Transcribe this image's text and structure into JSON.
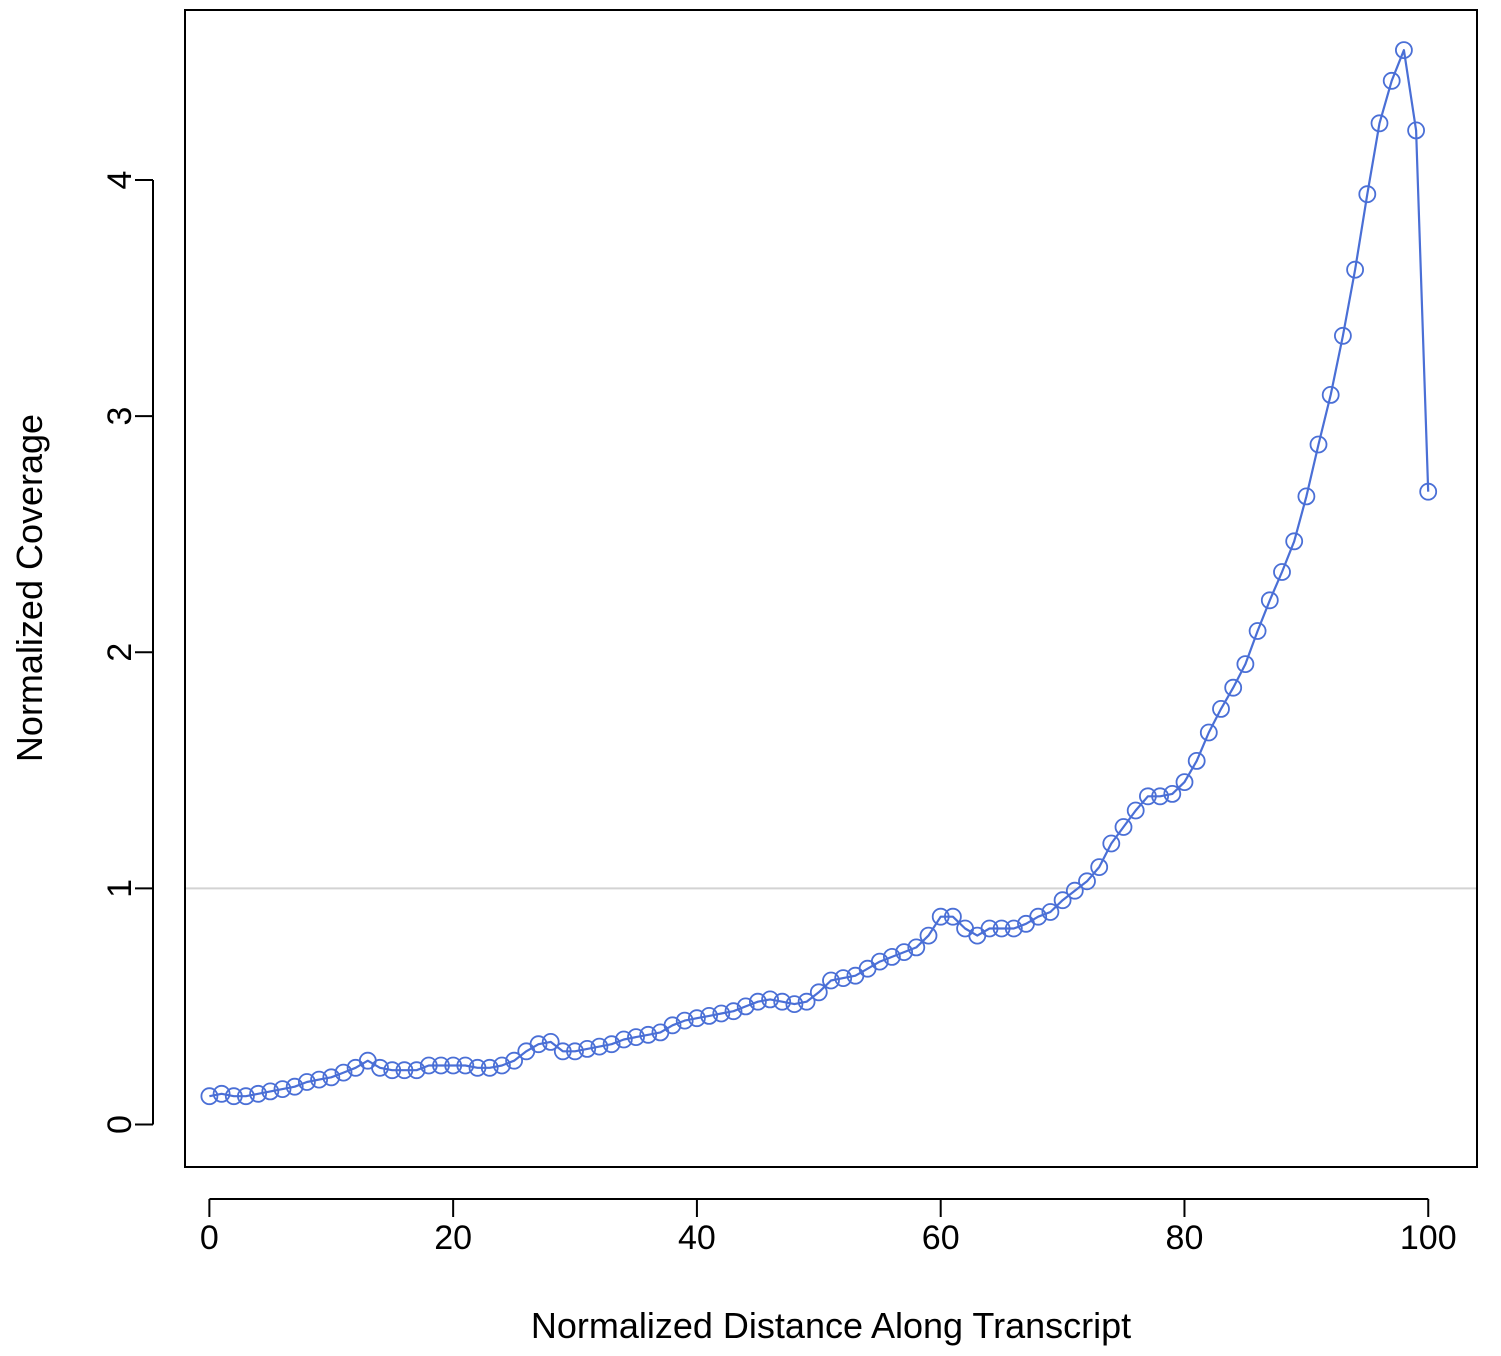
{
  "chart_data": {
    "type": "line",
    "title": "",
    "xlabel": "Normalized Distance Along Transcript",
    "ylabel": "Normalized Coverage",
    "xlim": [
      -2,
      104
    ],
    "ylim": [
      -0.18,
      4.72
    ],
    "xticks": [
      0,
      20,
      40,
      60,
      80,
      100
    ],
    "yticks": [
      0,
      1,
      2,
      3,
      4
    ],
    "xtick_labels": [
      "0",
      "20",
      "40",
      "60",
      "80",
      "100"
    ],
    "ytick_labels": [
      "0",
      "1",
      "2",
      "3",
      "4"
    ],
    "grid": false,
    "legend": "none",
    "reference_line": {
      "y": 1,
      "color": "#d3d3d3"
    },
    "series": [
      {
        "color": "#4a6fd6",
        "marker": "open-circle",
        "x": [
          0,
          1,
          2,
          3,
          4,
          5,
          6,
          7,
          8,
          9,
          10,
          11,
          12,
          13,
          14,
          15,
          16,
          17,
          18,
          19,
          20,
          21,
          22,
          23,
          24,
          25,
          26,
          27,
          28,
          29,
          30,
          31,
          32,
          33,
          34,
          35,
          36,
          37,
          38,
          39,
          40,
          41,
          42,
          43,
          44,
          45,
          46,
          47,
          48,
          49,
          50,
          51,
          52,
          53,
          54,
          55,
          56,
          57,
          58,
          59,
          60,
          61,
          62,
          63,
          64,
          65,
          66,
          67,
          68,
          69,
          70,
          71,
          72,
          73,
          74,
          75,
          76,
          77,
          78,
          79,
          80,
          81,
          82,
          83,
          84,
          85,
          86,
          87,
          88,
          89,
          90,
          91,
          92,
          93,
          94,
          95,
          96,
          97,
          98,
          99,
          100
        ],
        "values": [
          0.12,
          0.13,
          0.12,
          0.12,
          0.13,
          0.14,
          0.15,
          0.16,
          0.18,
          0.19,
          0.2,
          0.22,
          0.24,
          0.27,
          0.24,
          0.23,
          0.23,
          0.23,
          0.25,
          0.25,
          0.25,
          0.25,
          0.24,
          0.24,
          0.25,
          0.27,
          0.31,
          0.34,
          0.35,
          0.31,
          0.31,
          0.32,
          0.33,
          0.34,
          0.36,
          0.37,
          0.38,
          0.39,
          0.42,
          0.44,
          0.45,
          0.46,
          0.47,
          0.48,
          0.5,
          0.52,
          0.53,
          0.52,
          0.51,
          0.52,
          0.56,
          0.61,
          0.62,
          0.63,
          0.66,
          0.69,
          0.71,
          0.73,
          0.75,
          0.8,
          0.88,
          0.88,
          0.83,
          0.8,
          0.83,
          0.83,
          0.83,
          0.85,
          0.88,
          0.9,
          0.95,
          0.99,
          1.03,
          1.09,
          1.19,
          1.26,
          1.33,
          1.39,
          1.39,
          1.4,
          1.45,
          1.54,
          1.66,
          1.76,
          1.85,
          1.95,
          2.09,
          2.22,
          2.34,
          2.47,
          2.66,
          2.88,
          3.09,
          3.34,
          3.62,
          3.94,
          4.24,
          4.42,
          4.55,
          4.21,
          2.68
        ]
      }
    ]
  }
}
